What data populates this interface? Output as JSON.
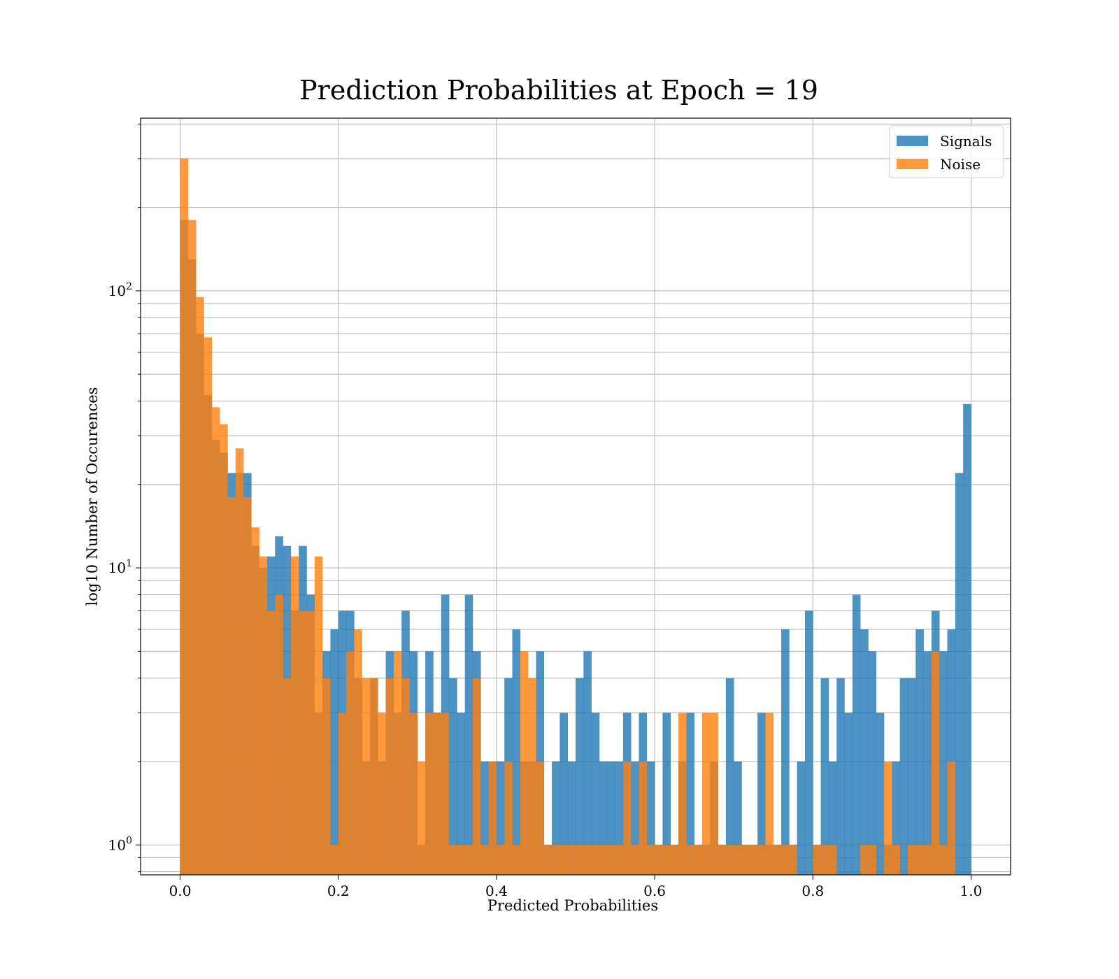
{
  "chart_data": {
    "type": "bar",
    "title": "Prediction Probabilities at Epoch = 19",
    "xlabel": "Predicted Probabilities",
    "ylabel": "log10 Number of Occurences",
    "y_scale": "log",
    "xlim": [
      -0.05,
      1.05
    ],
    "ylim": [
      0.78,
      420
    ],
    "grid": true,
    "legend_position": "top-right",
    "x_ticks": [
      "0.0",
      "0.2",
      "0.4",
      "0.6",
      "0.8",
      "1.0"
    ],
    "x_tick_values": [
      0.0,
      0.2,
      0.4,
      0.6,
      0.8,
      1.0
    ],
    "y_ticks": [
      {
        "value": 1,
        "base": "10",
        "exp": "0"
      },
      {
        "value": 10,
        "base": "10",
        "exp": "1"
      },
      {
        "value": 100,
        "base": "10",
        "exp": "2"
      }
    ],
    "bins": 100,
    "bin_range": [
      0.0,
      1.0
    ],
    "series": [
      {
        "name": "Signals",
        "color": "#1f77b4",
        "opacity": 0.8,
        "values": [
          180,
          130,
          70,
          42,
          29,
          26,
          22,
          22,
          22,
          12,
          10,
          11,
          13,
          12,
          7,
          12,
          8,
          3,
          5,
          6,
          7,
          7,
          4,
          2,
          4,
          2,
          5,
          3,
          7,
          5,
          1,
          5,
          3,
          8,
          4,
          3,
          8,
          5,
          2,
          2,
          2,
          4,
          6,
          2,
          2,
          5,
          1,
          2,
          3,
          2,
          4,
          5,
          3,
          2,
          2,
          2,
          3,
          2,
          3,
          2,
          1,
          3,
          1,
          2,
          3,
          1,
          1,
          2,
          1,
          4,
          2,
          1,
          1,
          3,
          1,
          1,
          6,
          1,
          2,
          7,
          1,
          4,
          2,
          4,
          3,
          8,
          6,
          5,
          3,
          1,
          2,
          4,
          4,
          6,
          5,
          7,
          5,
          6,
          22,
          39
        ]
      },
      {
        "name": "Noise",
        "color": "#ff7f0e",
        "opacity": 0.8,
        "values": [
          300,
          180,
          95,
          68,
          38,
          33,
          18,
          27,
          18,
          14,
          11,
          7,
          8,
          4,
          11,
          7,
          7,
          11,
          4,
          1,
          3,
          5,
          6,
          4,
          4,
          3,
          4,
          5,
          4,
          3,
          2,
          3,
          3,
          3,
          1,
          1,
          1,
          4,
          1,
          2,
          1,
          2,
          1,
          5,
          4,
          2,
          1,
          1,
          1,
          1,
          1,
          1,
          1,
          1,
          1,
          1,
          2,
          1,
          2,
          1,
          1,
          1,
          1,
          3,
          1,
          1,
          3,
          3,
          1,
          1,
          1,
          1,
          1,
          1,
          3,
          1,
          1,
          1,
          0,
          0,
          1,
          1,
          1,
          0,
          0,
          0,
          1,
          1,
          0,
          2,
          1,
          0,
          1,
          1,
          1,
          5,
          1,
          2,
          0,
          0
        ]
      }
    ]
  }
}
